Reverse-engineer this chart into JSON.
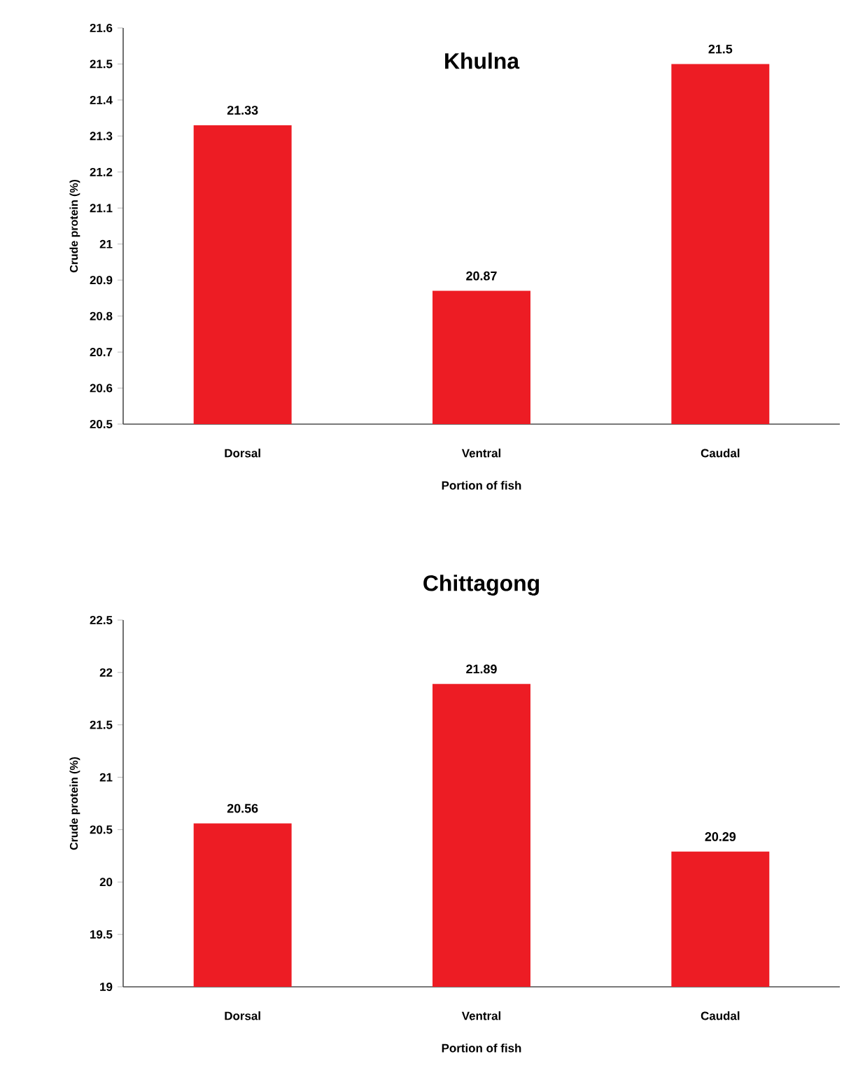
{
  "chart_data": [
    {
      "type": "bar",
      "title": "Khulna",
      "xlabel": "Portion of fish",
      "ylabel": "Crude protein (%)",
      "categories": [
        "Dorsal",
        "Ventral",
        "Caudal"
      ],
      "values": [
        21.33,
        20.87,
        21.5
      ],
      "color": "#ed1c24",
      "ylim": [
        20.5,
        21.6
      ],
      "yticks": [
        20.5,
        20.6,
        20.7,
        20.8,
        20.9,
        21,
        21.1,
        21.2,
        21.3,
        21.4,
        21.5,
        21.6
      ],
      "data_labels": true
    },
    {
      "type": "bar",
      "title": "Chittagong",
      "xlabel": "Portion of fish",
      "ylabel": "Crude protein (%)",
      "categories": [
        "Dorsal",
        "Ventral",
        "Caudal"
      ],
      "values": [
        20.56,
        21.89,
        20.29
      ],
      "color": "#ed1c24",
      "ylim": [
        19,
        22.5
      ],
      "yticks": [
        19,
        19.5,
        20,
        20.5,
        21,
        21.5,
        22,
        22.5
      ],
      "data_labels": true
    }
  ]
}
